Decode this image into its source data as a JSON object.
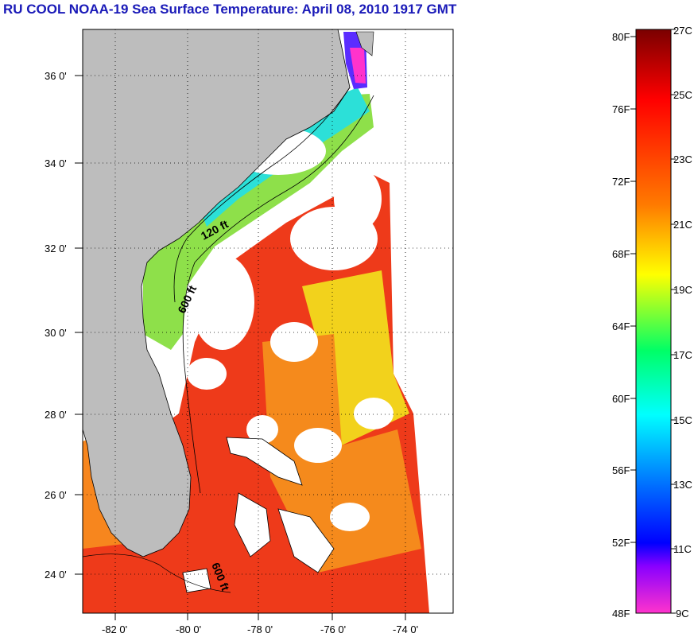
{
  "title": "RU COOL  NOAA-19  Sea Surface Temperature:  April 08, 2010 1917 GMT",
  "map": {
    "lat_labels": [
      "36 0'",
      "34 0'",
      "32 0'",
      "30 0'",
      "28 0'",
      "26 0'",
      "24 0'"
    ],
    "lon_labels": [
      "-82 0'",
      "-80 0'",
      "-78 0'",
      "-76 0'",
      "-74 0'"
    ],
    "contours": [
      "120 ft",
      "600 ft",
      "600 ft"
    ]
  },
  "colorbar": {
    "fahrenheit": [
      "80F",
      "76F",
      "72F",
      "68F",
      "64F",
      "60F",
      "56F",
      "52F",
      "48F"
    ],
    "celsius": [
      "27C",
      "25C",
      "23C",
      "21C",
      "19C",
      "17C",
      "15C",
      "13C",
      "11C",
      "9C"
    ],
    "colors": [
      "#7a0000",
      "#ff0000",
      "#ff7a00",
      "#ffff00",
      "#00ff66",
      "#00ffff",
      "#0070ff",
      "#0000ff",
      "#8a00ff",
      "#ff33cc"
    ]
  }
}
